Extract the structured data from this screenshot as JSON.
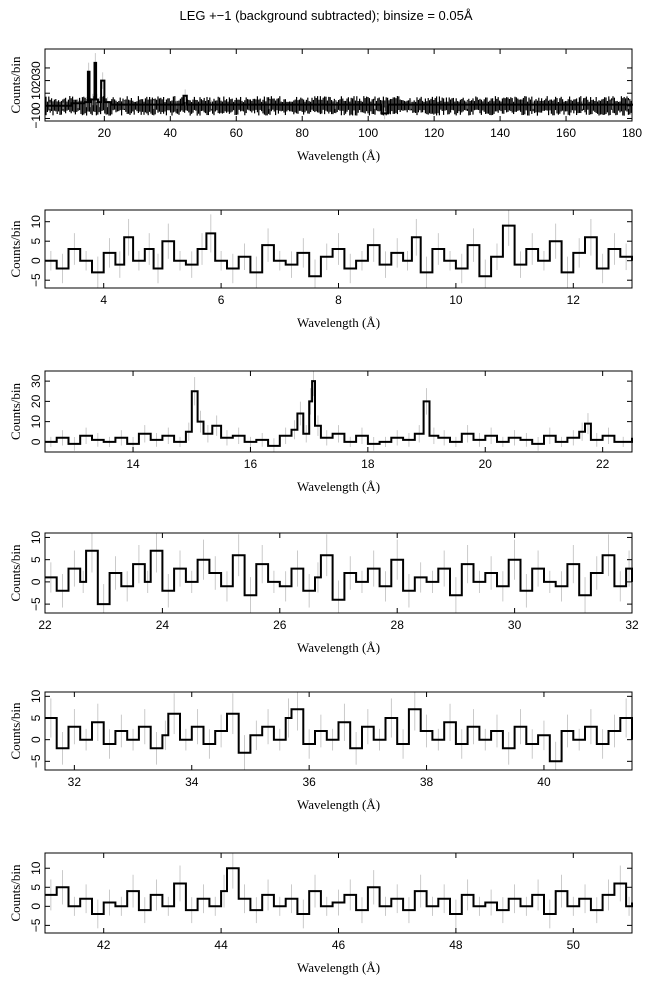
{
  "title": "LEG +−1 (background subtracted); binsize = 0.05Å",
  "colors": {
    "line": "#000000",
    "errorbar": "#bdbdbd",
    "frame": "#000000"
  },
  "chart_data": [
    {
      "type": "line",
      "xlabel": "Wavelength (Å)",
      "ylabel": "Counts/bin",
      "xlim": [
        2,
        180
      ],
      "ylim": [
        -12,
        45
      ],
      "xticks": [
        20,
        40,
        60,
        80,
        100,
        120,
        140,
        160,
        180
      ],
      "yticks": [
        -10,
        0,
        10,
        20,
        30
      ],
      "ytick_labels": [
        "−10",
        "0",
        "10",
        "20",
        "30"
      ],
      "series": [
        {
          "x": [
            2,
            5,
            10,
            14,
            15,
            15.5,
            16,
            17,
            17.5,
            18,
            19,
            20,
            22,
            30,
            40,
            44,
            45,
            60,
            80,
            100,
            104,
            106,
            120,
            140,
            160,
            170,
            178,
            180
          ],
          "y": [
            0,
            0,
            2,
            3,
            27,
            3,
            5,
            34,
            5,
            3,
            20,
            3,
            1,
            1,
            1,
            8,
            1,
            1,
            1,
            1,
            -6,
            1,
            1,
            1,
            1,
            1,
            1,
            0
          ],
          "band": [
            -6,
            6
          ]
        }
      ]
    },
    {
      "type": "line",
      "xlabel": "Wavelength (Å)",
      "ylabel": "Counts/bin",
      "xlim": [
        3,
        13
      ],
      "ylim": [
        -7,
        13
      ],
      "xticks": [
        4,
        6,
        8,
        10,
        12
      ],
      "yticks": [
        -5,
        0,
        5,
        10
      ],
      "ytick_labels": [
        "−5",
        "0",
        "5",
        "10"
      ],
      "series": [
        {
          "x": [
            3.0,
            3.2,
            3.4,
            3.6,
            3.8,
            4.0,
            4.2,
            4.35,
            4.5,
            4.7,
            4.85,
            5.0,
            5.2,
            5.4,
            5.6,
            5.75,
            5.9,
            6.1,
            6.3,
            6.5,
            6.7,
            6.9,
            7.1,
            7.3,
            7.5,
            7.7,
            7.9,
            8.1,
            8.3,
            8.5,
            8.7,
            8.9,
            9.1,
            9.25,
            9.4,
            9.6,
            9.8,
            10.0,
            10.2,
            10.4,
            10.6,
            10.8,
            11.0,
            11.2,
            11.4,
            11.6,
            11.8,
            12.0,
            12.2,
            12.4,
            12.6,
            12.8,
            13.0
          ],
          "y": [
            0,
            -2,
            3,
            0,
            -3,
            2,
            -1,
            6,
            0,
            3,
            -2,
            5,
            0,
            -1,
            3,
            7,
            0,
            -2,
            1,
            -3,
            4,
            0,
            -1,
            2,
            -4,
            1,
            3,
            -2,
            0,
            4,
            -1,
            2,
            0,
            6,
            -3,
            3,
            0,
            -2,
            4,
            -4,
            1,
            9,
            -1,
            3,
            0,
            5,
            -3,
            2,
            6,
            -2,
            3,
            1,
            0
          ]
        }
      ]
    },
    {
      "type": "line",
      "xlabel": "Wavelength (Å)",
      "ylabel": "Counts/bin",
      "xlim": [
        12.5,
        22.5
      ],
      "ylim": [
        -5,
        35
      ],
      "xticks": [
        14,
        16,
        18,
        20,
        22
      ],
      "yticks": [
        0,
        10,
        20,
        30
      ],
      "ytick_labels": [
        "0",
        "10",
        "20",
        "30"
      ],
      "series": [
        {
          "x": [
            12.5,
            12.7,
            12.9,
            13.1,
            13.3,
            13.5,
            13.7,
            13.9,
            14.1,
            14.3,
            14.5,
            14.7,
            14.9,
            15.0,
            15.1,
            15.2,
            15.35,
            15.5,
            15.7,
            15.9,
            16.1,
            16.3,
            16.5,
            16.7,
            16.8,
            16.9,
            17.0,
            17.05,
            17.1,
            17.2,
            17.4,
            17.6,
            17.8,
            18.0,
            18.2,
            18.4,
            18.6,
            18.8,
            18.95,
            19.05,
            19.2,
            19.4,
            19.6,
            19.8,
            20.0,
            20.2,
            20.4,
            20.6,
            20.8,
            21.0,
            21.2,
            21.4,
            21.6,
            21.7,
            21.8,
            22.0,
            22.2,
            22.5
          ],
          "y": [
            0,
            2,
            -1,
            3,
            1,
            0,
            2,
            -1,
            4,
            1,
            3,
            0,
            5,
            25,
            10,
            4,
            8,
            2,
            3,
            0,
            1,
            -2,
            3,
            6,
            14,
            4,
            20,
            30,
            8,
            2,
            4,
            0,
            3,
            -1,
            0,
            2,
            1,
            4,
            20,
            3,
            2,
            0,
            4,
            1,
            3,
            0,
            2,
            1,
            -1,
            3,
            0,
            2,
            5,
            9,
            1,
            3,
            0,
            2
          ]
        }
      ]
    },
    {
      "type": "line",
      "xlabel": "Wavelength (Å)",
      "ylabel": "Counts/bin",
      "xlim": [
        22,
        32
      ],
      "ylim": [
        -7,
        11
      ],
      "xticks": [
        22,
        24,
        26,
        28,
        30,
        32
      ],
      "yticks": [
        -5,
        0,
        5,
        10
      ],
      "ytick_labels": [
        "−5",
        "0",
        "5",
        "10"
      ],
      "series": [
        {
          "x": [
            22.0,
            22.2,
            22.4,
            22.6,
            22.7,
            22.9,
            23.1,
            23.3,
            23.5,
            23.7,
            23.8,
            24.0,
            24.2,
            24.4,
            24.6,
            24.8,
            25.0,
            25.2,
            25.4,
            25.6,
            25.8,
            26.0,
            26.2,
            26.4,
            26.6,
            26.7,
            26.9,
            27.1,
            27.3,
            27.5,
            27.7,
            27.9,
            28.1,
            28.3,
            28.5,
            28.7,
            28.9,
            29.1,
            29.3,
            29.5,
            29.7,
            29.9,
            30.1,
            30.3,
            30.5,
            30.7,
            30.9,
            31.1,
            31.3,
            31.5,
            31.7,
            31.9,
            32.0
          ],
          "y": [
            1,
            -2,
            3,
            0,
            7,
            -5,
            2,
            -1,
            4,
            0,
            7,
            -2,
            3,
            0,
            5,
            2,
            -1,
            6,
            -3,
            4,
            0,
            -1,
            3,
            -2,
            1,
            6,
            -4,
            2,
            0,
            3,
            -1,
            5,
            -2,
            1,
            0,
            3,
            -3,
            4,
            0,
            2,
            -1,
            5,
            -2,
            3,
            0,
            -1,
            4,
            -3,
            2,
            6,
            -1,
            3,
            0
          ]
        }
      ]
    },
    {
      "type": "line",
      "xlabel": "Wavelength (Å)",
      "ylabel": "Counts/bin",
      "xlim": [
        31.5,
        41.5
      ],
      "ylim": [
        -7,
        11
      ],
      "xticks": [
        32,
        34,
        36,
        38,
        40
      ],
      "yticks": [
        -5,
        0,
        5,
        10
      ],
      "ytick_labels": [
        "−5",
        "0",
        "5",
        "10"
      ],
      "series": [
        {
          "x": [
            31.5,
            31.7,
            31.9,
            32.1,
            32.3,
            32.5,
            32.7,
            32.9,
            33.1,
            33.3,
            33.5,
            33.6,
            33.8,
            34.0,
            34.2,
            34.4,
            34.6,
            34.8,
            35.0,
            35.2,
            35.4,
            35.6,
            35.7,
            35.9,
            36.1,
            36.3,
            36.5,
            36.7,
            36.9,
            37.1,
            37.3,
            37.5,
            37.7,
            37.9,
            38.1,
            38.3,
            38.5,
            38.7,
            38.9,
            39.1,
            39.3,
            39.5,
            39.7,
            39.9,
            40.1,
            40.3,
            40.5,
            40.7,
            40.9,
            41.1,
            41.3,
            41.5
          ],
          "y": [
            5,
            -2,
            3,
            0,
            4,
            -1,
            2,
            0,
            3,
            -2,
            1,
            6,
            0,
            3,
            -1,
            2,
            6,
            -3,
            1,
            3,
            0,
            5,
            7,
            -1,
            2,
            0,
            4,
            -2,
            3,
            0,
            5,
            -1,
            7,
            2,
            0,
            4,
            -1,
            3,
            0,
            2,
            -2,
            3,
            -1,
            1,
            -5,
            2,
            0,
            3,
            -1,
            2,
            5,
            0
          ]
        }
      ]
    },
    {
      "type": "line",
      "xlabel": "Wavelength (Å)",
      "ylabel": "Counts/bin",
      "xlim": [
        41,
        51
      ],
      "ylim": [
        -7,
        14
      ],
      "xticks": [
        42,
        44,
        46,
        48,
        50
      ],
      "yticks": [
        -5,
        0,
        5,
        10
      ],
      "ytick_labels": [
        "−5",
        "0",
        "5",
        "10"
      ],
      "series": [
        {
          "x": [
            41.0,
            41.2,
            41.4,
            41.6,
            41.8,
            42.0,
            42.2,
            42.4,
            42.6,
            42.8,
            43.0,
            43.2,
            43.4,
            43.6,
            43.8,
            44.0,
            44.1,
            44.3,
            44.5,
            44.7,
            44.9,
            45.1,
            45.3,
            45.5,
            45.7,
            45.9,
            46.1,
            46.3,
            46.5,
            46.7,
            46.9,
            47.1,
            47.3,
            47.5,
            47.7,
            47.9,
            48.1,
            48.3,
            48.5,
            48.7,
            48.9,
            49.1,
            49.3,
            49.5,
            49.7,
            49.9,
            50.1,
            50.3,
            50.5,
            50.7,
            50.9,
            51.0
          ],
          "y": [
            3,
            5,
            0,
            2,
            -2,
            1,
            0,
            4,
            -1,
            3,
            0,
            6,
            -1,
            2,
            0,
            4,
            10,
            2,
            -1,
            3,
            0,
            2,
            -2,
            4,
            0,
            1,
            3,
            -1,
            5,
            0,
            2,
            -1,
            4,
            0,
            2,
            -2,
            3,
            0,
            1,
            -1,
            2,
            0,
            3,
            -2,
            4,
            0,
            2,
            -1,
            3,
            6,
            0,
            1
          ]
        }
      ]
    }
  ]
}
